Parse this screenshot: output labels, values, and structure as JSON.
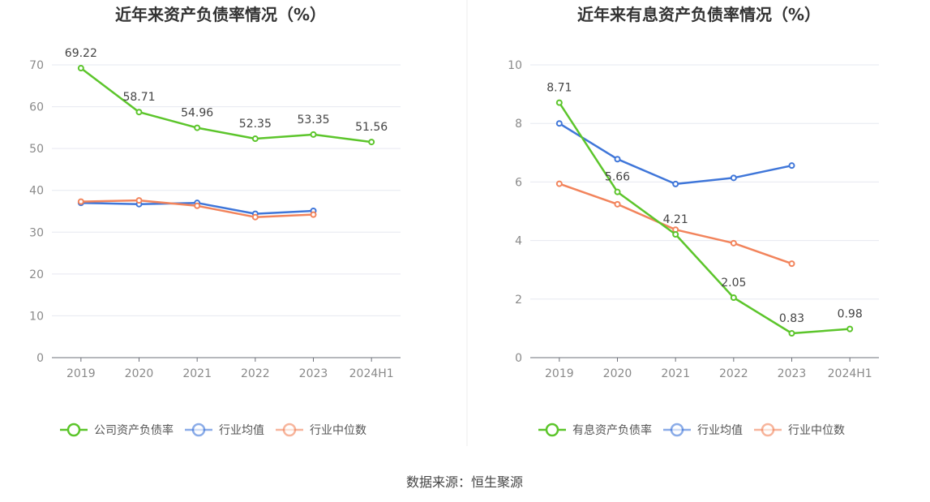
{
  "source_text": "数据来源：恒生聚源",
  "chart_data": [
    {
      "type": "line",
      "title": "近年来资产负债率情况（%）",
      "categories": [
        "2019",
        "2020",
        "2021",
        "2022",
        "2023",
        "2024H1"
      ],
      "ylim": [
        0,
        70
      ],
      "yticks": [
        0,
        10,
        20,
        30,
        40,
        50,
        60,
        70
      ],
      "grid": true,
      "legend_position": "bottom",
      "series": [
        {
          "name": "公司资产负债率",
          "color": "#5cc52b",
          "labels": true,
          "values": [
            69.22,
            58.71,
            54.96,
            52.35,
            53.35,
            51.56
          ]
        },
        {
          "name": "行业均值",
          "color": "#3f76d9",
          "labels": false,
          "values": [
            37.0,
            36.7,
            37.0,
            34.4,
            35.1,
            null
          ]
        },
        {
          "name": "行业中位数",
          "color": "#f2845c",
          "labels": false,
          "values": [
            37.3,
            37.6,
            36.3,
            33.6,
            34.2,
            null
          ]
        }
      ]
    },
    {
      "type": "line",
      "title": "近年来有息资产负债率情况（%）",
      "categories": [
        "2019",
        "2020",
        "2021",
        "2022",
        "2023",
        "2024H1"
      ],
      "ylim": [
        0,
        10
      ],
      "yticks": [
        0,
        2,
        4,
        6,
        8,
        10
      ],
      "grid": true,
      "legend_position": "bottom",
      "series": [
        {
          "name": "有息资产负债率",
          "color": "#5cc52b",
          "labels": true,
          "values": [
            8.71,
            5.66,
            4.21,
            2.05,
            0.83,
            0.98
          ]
        },
        {
          "name": "行业均值",
          "color": "#3f76d9",
          "labels": false,
          "values": [
            8.0,
            6.78,
            5.93,
            6.14,
            6.56,
            null
          ]
        },
        {
          "name": "行业中位数",
          "color": "#f2845c",
          "labels": false,
          "values": [
            5.94,
            5.24,
            4.37,
            3.91,
            3.21,
            null
          ]
        }
      ]
    }
  ]
}
